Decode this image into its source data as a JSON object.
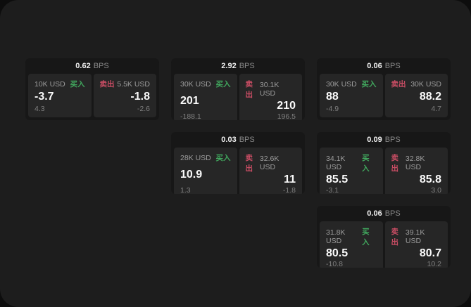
{
  "page": {
    "background": "#0d0d0d",
    "panel_background": "#1d1d1d"
  },
  "labels": {
    "bps_suffix": "BPS",
    "buy": "买入",
    "sell": "卖出"
  },
  "colors": {
    "buy_green": "#41a85e",
    "sell_red": "#c94d64",
    "card_bg": "#171717",
    "cell_bg": "#262626",
    "text_primary": "#fafafa",
    "text_secondary": "#9c9c9c"
  },
  "cards": [
    {
      "row": 1,
      "col": 1,
      "bps": "0.62",
      "buy": {
        "notional": "10K USD",
        "price": "-3.7",
        "delta": "4.3"
      },
      "sell": {
        "notional": "5.5K USD",
        "price": "-1.8",
        "delta": "-2.6"
      }
    },
    {
      "row": 1,
      "col": 2,
      "bps": "2.92",
      "buy": {
        "notional": "30K USD",
        "price": "201",
        "delta": "-188.1"
      },
      "sell": {
        "notional": "30.1K USD",
        "price": "210",
        "delta": "196.5"
      }
    },
    {
      "row": 1,
      "col": 3,
      "bps": "0.06",
      "buy": {
        "notional": "30K USD",
        "price": "88",
        "delta": "-4.9"
      },
      "sell": {
        "notional": "30K USD",
        "price": "88.2",
        "delta": "4.7"
      }
    },
    {
      "row": 2,
      "col": 2,
      "bps": "0.03",
      "buy": {
        "notional": "28K USD",
        "price": "10.9",
        "delta": "1.3"
      },
      "sell": {
        "notional": "32.6K USD",
        "price": "11",
        "delta": "-1.8"
      }
    },
    {
      "row": 2,
      "col": 3,
      "bps": "0.09",
      "buy": {
        "notional": "34.1K USD",
        "price": "85.5",
        "delta": "-3.1"
      },
      "sell": {
        "notional": "32.8K USD",
        "price": "85.8",
        "delta": "3.0"
      }
    },
    {
      "row": 3,
      "col": 3,
      "bps": "0.06",
      "buy": {
        "notional": "31.8K USD",
        "price": "80.5",
        "delta": "-10.8"
      },
      "sell": {
        "notional": "39.1K USD",
        "price": "80.7",
        "delta": "10.2"
      }
    }
  ]
}
